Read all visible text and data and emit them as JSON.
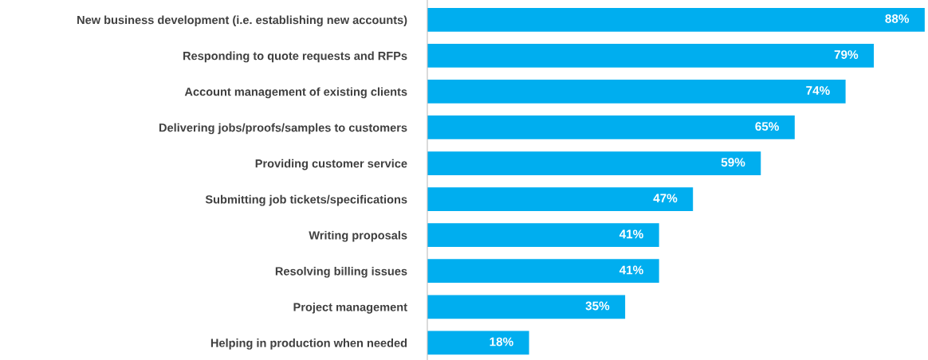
{
  "chart_data": {
    "type": "bar",
    "orientation": "horizontal",
    "categories": [
      "New business development (i.e. establishing new accounts)",
      "Responding to quote requests and RFPs",
      "Account management of existing clients",
      "Delivering jobs/proofs/samples to customers",
      "Providing customer service",
      "Submitting job tickets/specifications",
      "Writing proposals",
      "Resolving billing issues",
      "Project management",
      "Helping in production when needed"
    ],
    "values": [
      88,
      79,
      74,
      65,
      59,
      47,
      41,
      41,
      35,
      18
    ],
    "value_labels": [
      "88%",
      "79%",
      "74%",
      "65%",
      "59%",
      "47%",
      "41%",
      "41%",
      "35%",
      "18%"
    ],
    "color": "#00aeef",
    "xlim": [
      0,
      88.3
    ],
    "tick_labels": "y",
    "grid": false,
    "legend": false
  }
}
